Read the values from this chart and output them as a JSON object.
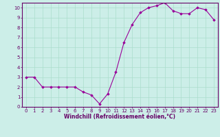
{
  "x": [
    0,
    1,
    2,
    3,
    4,
    5,
    6,
    7,
    8,
    9,
    10,
    11,
    12,
    13,
    14,
    15,
    16,
    17,
    18,
    19,
    20,
    21,
    22,
    23
  ],
  "y": [
    3.0,
    3.0,
    2.0,
    2.0,
    2.0,
    2.0,
    2.0,
    1.5,
    1.2,
    0.3,
    1.3,
    3.5,
    6.5,
    8.3,
    9.5,
    10.0,
    10.2,
    10.5,
    9.7,
    9.4,
    9.4,
    10.0,
    9.8,
    8.8
  ],
  "line_color": "#990099",
  "marker": "D",
  "marker_size": 1.8,
  "line_width": 0.8,
  "bg_color": "#cceee8",
  "grid_color": "#aaddcc",
  "xlabel": "Windchill (Refroidissement éolien,°C)",
  "xlabel_fontsize": 5.5,
  "xlim": [
    -0.5,
    23.5
  ],
  "ylim": [
    0,
    10.5
  ],
  "yticks": [
    0,
    1,
    2,
    3,
    4,
    5,
    6,
    7,
    8,
    9,
    10
  ],
  "xticks": [
    0,
    1,
    2,
    3,
    4,
    5,
    6,
    7,
    8,
    9,
    10,
    11,
    12,
    13,
    14,
    15,
    16,
    17,
    18,
    19,
    20,
    21,
    22,
    23
  ],
  "tick_fontsize": 5.0,
  "spine_color": "#660066",
  "text_color": "#660066"
}
